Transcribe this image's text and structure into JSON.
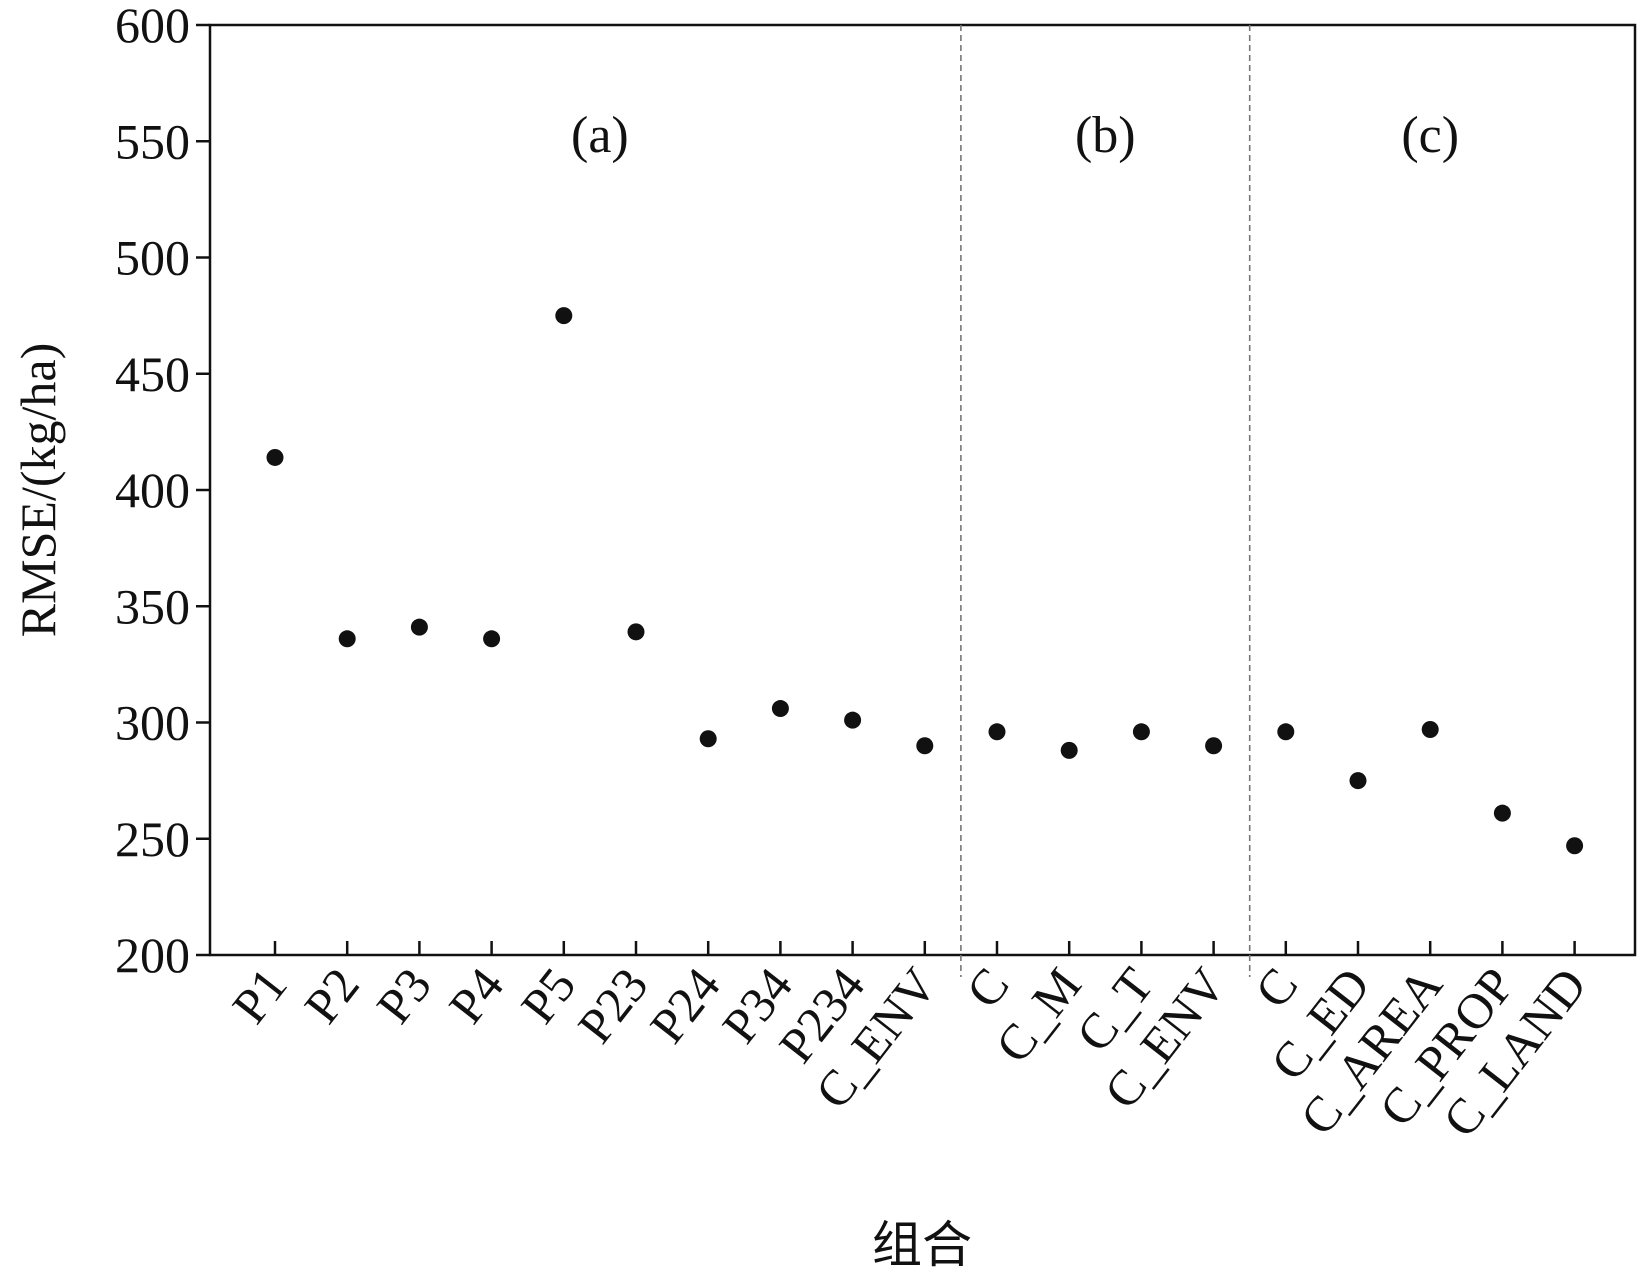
{
  "chart_data": {
    "type": "scatter",
    "title": "",
    "xlabel": "组合",
    "ylabel": "RMSE/(kg/ha)",
    "ylim": [
      200,
      600
    ],
    "yticks": [
      200,
      250,
      300,
      350,
      400,
      450,
      500,
      550,
      600
    ],
    "categories": [
      "P1",
      "P2",
      "P3",
      "P4",
      "P5",
      "P23",
      "P24",
      "P34",
      "P234",
      "C_ENV",
      "C",
      "C_M",
      "C_T",
      "C_ENV",
      "C",
      "C_ED",
      "C_AREA",
      "C_PROP",
      "C_LAND"
    ],
    "values": [
      414,
      336,
      341,
      336,
      475,
      339,
      293,
      306,
      301,
      290,
      296,
      288,
      296,
      290,
      296,
      275,
      297,
      261,
      247
    ],
    "groups": [
      {
        "label": "(a)",
        "count": 10
      },
      {
        "label": "(b)",
        "count": 4
      },
      {
        "label": "(c)",
        "count": 5
      }
    ],
    "grid": false,
    "marker_color": "#111111",
    "separator_color": "#777777"
  }
}
